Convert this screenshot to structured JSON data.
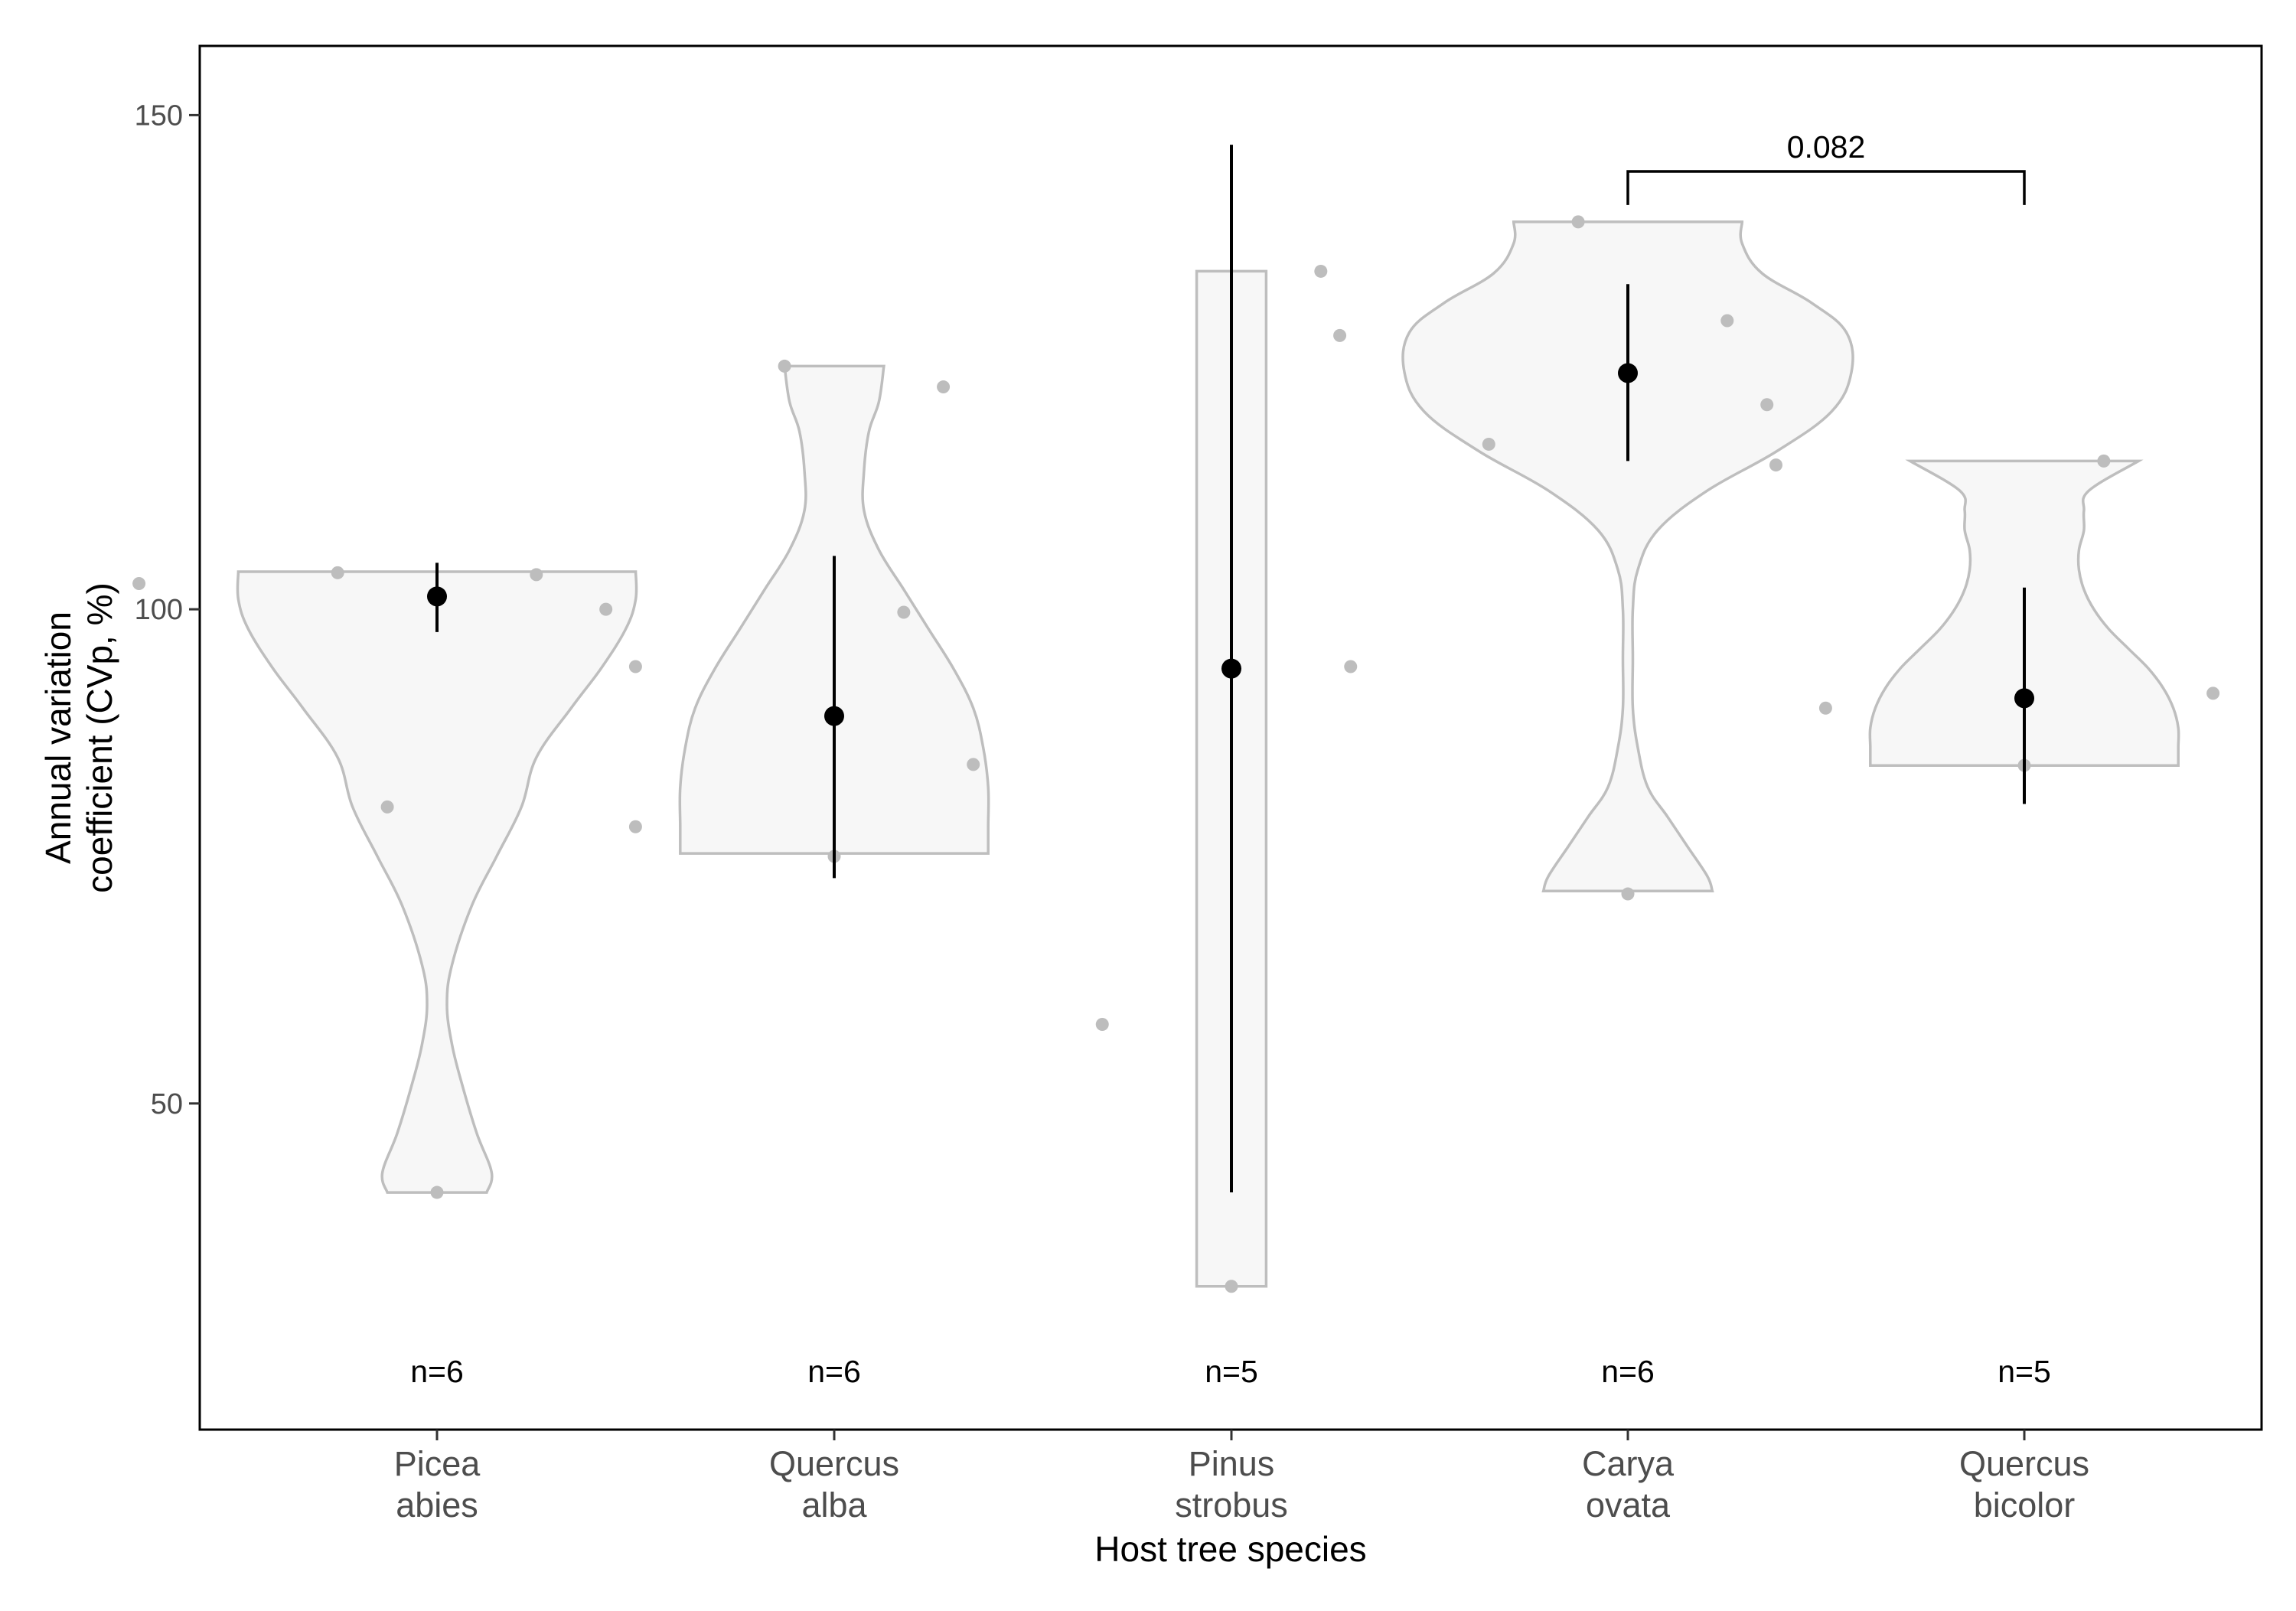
{
  "chart_data": {
    "type": "violin",
    "xlabel": "Host tree species",
    "ylabel": [
      "Annual variation",
      "coefficient (CVp, %)"
    ],
    "ylim": [
      17,
      157
    ],
    "yticks": [
      50,
      100,
      150
    ],
    "grid": false,
    "colors": {
      "violin_fill": "#f7f7f7",
      "violin_stroke": "#bebebe",
      "jitter_point": "#bdbdbd",
      "mean_point": "#000000",
      "error_bar": "#000000"
    },
    "groups": [
      {
        "label": [
          "Picea",
          "abies"
        ],
        "n_label": "n=6",
        "points": [
          {
            "dx": -0.3,
            "y": 102.6
          },
          {
            "dx": -0.1,
            "y": 103.7
          },
          {
            "dx": 0.1,
            "y": 103.5
          },
          {
            "dx": 0.17,
            "y": 100.0
          },
          {
            "dx": -0.05,
            "y": 80.0
          },
          {
            "dx": 0.0,
            "y": 41.0
          }
        ],
        "mean": 101.3,
        "ci": [
          97.7,
          104.7
        ],
        "violin": {
          "y": [
            41,
            43,
            47,
            52,
            56,
            60,
            64,
            70,
            75,
            80,
            85,
            90,
            94,
            98,
            101,
            103.8
          ],
          "w": [
            0.1,
            0.11,
            0.08,
            0.05,
            0.03,
            0.02,
            0.03,
            0.07,
            0.12,
            0.17,
            0.2,
            0.27,
            0.33,
            0.38,
            0.4,
            0.4
          ]
        }
      },
      {
        "label": [
          "Quercus",
          "alba"
        ],
        "n_label": "n=6",
        "points": [
          {
            "dx": -0.2,
            "y": 94.2
          },
          {
            "dx": -0.2,
            "y": 78.0
          },
          {
            "dx": -0.05,
            "y": 124.6
          },
          {
            "dx": 0.07,
            "y": 99.7
          },
          {
            "dx": 0.14,
            "y": 84.3
          },
          {
            "dx": 0.0,
            "y": 75.0
          }
        ],
        "mean": 89.2,
        "ci": [
          72.8,
          105.4
        ],
        "violin": {
          "y": [
            75.3,
            78,
            82,
            86,
            90,
            94,
            98,
            102,
            106,
            110,
            114,
            118,
            121,
            124.6
          ],
          "w": [
            0.31,
            0.31,
            0.31,
            0.3,
            0.28,
            0.24,
            0.19,
            0.14,
            0.09,
            0.06,
            0.06,
            0.07,
            0.09,
            0.1
          ]
        }
      },
      {
        "label": [
          "Pinus",
          "strobus"
        ],
        "n_label": "n=5",
        "points": [
          {
            "dx": -0.29,
            "y": 122.5
          },
          {
            "dx": 0.09,
            "y": 134.2
          },
          {
            "dx": 0.12,
            "y": 94.2
          },
          {
            "dx": -0.13,
            "y": 58.0
          },
          {
            "dx": 0.0,
            "y": 31.5
          }
        ],
        "mean": 94.0,
        "ci": [
          41.0,
          147.0
        ],
        "violin": {
          "y": [
            31.5,
            40,
            55,
            70,
            85,
            100,
            115,
            125,
            134.2
          ],
          "w": [
            0.07,
            0.07,
            0.07,
            0.07,
            0.07,
            0.07,
            0.07,
            0.07,
            0.07
          ]
        }
      },
      {
        "label": [
          "Carya",
          "ovata"
        ],
        "n_label": "n=6",
        "points": [
          {
            "dx": -0.05,
            "y": 139.2
          },
          {
            "dx": -0.29,
            "y": 127.7
          },
          {
            "dx": 0.1,
            "y": 129.2
          },
          {
            "dx": 0.14,
            "y": 120.7
          },
          {
            "dx": -0.14,
            "y": 116.7
          },
          {
            "dx": 0.0,
            "y": 71.2
          }
        ],
        "mean": 123.9,
        "ci": [
          115.0,
          132.9
        ],
        "violin": {
          "y": [
            71.5,
            73,
            76,
            79,
            82,
            86,
            90,
            95,
            100,
            104,
            108,
            112,
            116,
            120,
            124,
            128,
            131,
            134,
            137,
            139.2
          ],
          "w": [
            0.17,
            0.16,
            0.12,
            0.08,
            0.04,
            0.02,
            0.01,
            0.01,
            0.01,
            0.02,
            0.06,
            0.16,
            0.3,
            0.41,
            0.45,
            0.44,
            0.37,
            0.27,
            0.23,
            0.23
          ]
        }
      },
      {
        "label": [
          "Quercus",
          "bicolor"
        ],
        "n_label": "n=5",
        "points": [
          {
            "dx": -0.25,
            "y": 114.6
          },
          {
            "dx": 0.08,
            "y": 115.0
          },
          {
            "dx": -0.2,
            "y": 90.0
          },
          {
            "dx": 0.19,
            "y": 91.5
          },
          {
            "dx": 0.0,
            "y": 84.2
          }
        ],
        "mean": 91.0,
        "ci": [
          80.3,
          102.2
        ],
        "violin": {
          "y": [
            84.2,
            86,
            88,
            90,
            92,
            94,
            96,
            98,
            100,
            102,
            104,
            106,
            108,
            110,
            112,
            115
          ],
          "w": [
            0.31,
            0.31,
            0.31,
            0.3,
            0.28,
            0.25,
            0.21,
            0.17,
            0.14,
            0.12,
            0.11,
            0.11,
            0.12,
            0.12,
            0.13,
            0.23
          ]
        }
      }
    ],
    "comparisons": [
      {
        "from": 3,
        "to": 4,
        "label": "0.082",
        "y": 144.3
      }
    ]
  }
}
